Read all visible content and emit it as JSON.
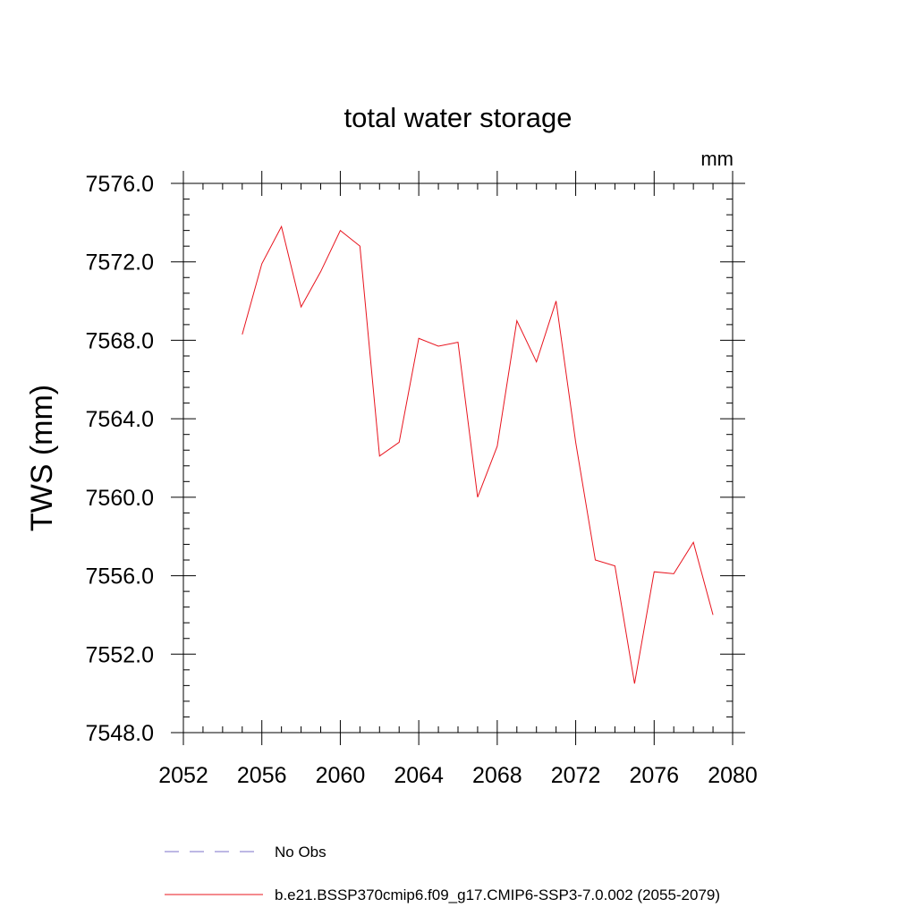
{
  "chart_data": {
    "type": "line",
    "title": "total water storage",
    "units_label": "mm",
    "xlabel": "",
    "ylabel": "TWS  (mm)",
    "xlim": [
      2052,
      2080
    ],
    "ylim": [
      7548.0,
      7576.0
    ],
    "x_ticks": [
      2052,
      2056,
      2060,
      2064,
      2068,
      2072,
      2076,
      2080
    ],
    "x_tick_labels": [
      "2052",
      "2056",
      "2060",
      "2064",
      "2068",
      "2072",
      "2076",
      "2080"
    ],
    "x_minor_step": 1,
    "y_ticks": [
      7548.0,
      7552.0,
      7556.0,
      7560.0,
      7564.0,
      7568.0,
      7572.0,
      7576.0
    ],
    "y_tick_labels": [
      "7548.0",
      "7552.0",
      "7556.0",
      "7560.0",
      "7564.0",
      "7568.0",
      "7572.0",
      "7576.0"
    ],
    "y_minor_step": 0.8,
    "grid": false,
    "series": [
      {
        "name": "b.e21.BSSP370cmip6.f09_g17.CMIP6-SSP3-7.0.002 (2055-2079)",
        "color": "#e8141e",
        "style": "solid",
        "x": [
          2055,
          2056,
          2057,
          2058,
          2059,
          2060,
          2061,
          2062,
          2063,
          2064,
          2065,
          2066,
          2067,
          2068,
          2069,
          2070,
          2071,
          2072,
          2073,
          2074,
          2075,
          2076,
          2077,
          2078,
          2079
        ],
        "values": [
          7568.3,
          7571.9,
          7573.8,
          7569.7,
          7571.5,
          7573.6,
          7572.8,
          7562.1,
          7562.8,
          7568.1,
          7567.7,
          7567.9,
          7560.0,
          7562.6,
          7569.0,
          7566.9,
          7570.0,
          7562.8,
          7556.8,
          7556.5,
          7550.5,
          7556.2,
          7556.1,
          7557.7,
          7554.0
        ]
      }
    ],
    "legend": [
      {
        "label": "No Obs",
        "color": "#7b72c8",
        "style": "dashed"
      },
      {
        "label": "b.e21.BSSP370cmip6.f09_g17.CMIP6-SSP3-7.0.002 (2055-2079)",
        "color": "#e8141e",
        "style": "solid"
      }
    ],
    "legend_position": "bottom"
  }
}
